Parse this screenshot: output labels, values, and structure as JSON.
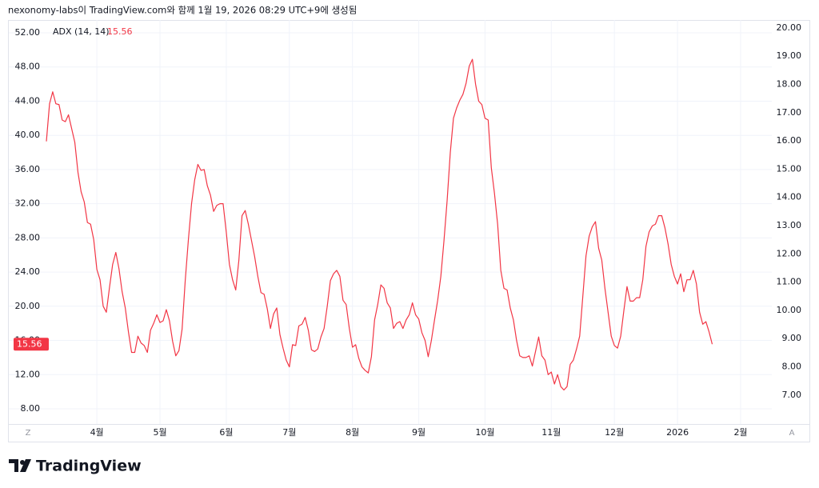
{
  "header": "nexonomy-labs이 TradingView.com와 함께 1월 19, 2026 08:29 UTC+9에 생성됨",
  "brand": "TradingView",
  "controls": {
    "left": "Z",
    "right": "A"
  },
  "chart_data": {
    "type": "line",
    "grid": true,
    "categories": [
      null,
      null,
      null,
      null,
      null,
      null,
      null,
      null,
      null,
      null,
      null,
      null,
      null,
      null,
      null,
      null,
      "4월",
      null,
      null,
      null,
      null,
      null,
      null,
      null,
      null,
      null,
      null,
      null,
      null,
      null,
      null,
      null,
      null,
      null,
      null,
      null,
      "5월",
      null,
      null,
      null,
      null,
      null,
      null,
      null,
      null,
      null,
      null,
      null,
      null,
      null,
      null,
      null,
      null,
      null,
      null,
      null,
      null,
      "6월",
      null,
      null,
      null,
      null,
      null,
      null,
      null,
      null,
      null,
      null,
      null,
      null,
      null,
      null,
      null,
      null,
      null,
      null,
      null,
      "7월",
      null,
      null,
      null,
      null,
      null,
      null,
      null,
      null,
      null,
      null,
      null,
      null,
      null,
      null,
      null,
      null,
      null,
      null,
      null,
      "8월",
      null,
      null,
      null,
      null,
      null,
      null,
      null,
      null,
      null,
      null,
      null,
      null,
      null,
      null,
      null,
      null,
      null,
      null,
      null,
      null,
      "9월",
      null,
      null,
      null,
      null,
      null,
      null,
      null,
      null,
      null,
      null,
      null,
      null,
      null,
      null,
      null,
      null,
      null,
      null,
      null,
      null,
      "10월",
      null,
      null,
      null,
      null,
      null,
      null,
      null,
      null,
      null,
      null,
      null,
      null,
      null,
      null,
      null,
      null,
      null,
      null,
      null,
      null,
      "11월",
      null,
      null,
      null,
      null,
      null,
      null,
      null,
      null,
      null,
      null,
      null,
      null,
      null,
      null,
      null,
      null,
      null,
      null,
      null,
      "12월",
      null,
      null,
      null,
      null,
      null,
      null,
      null,
      null,
      null,
      null,
      null,
      null,
      null,
      null,
      null,
      null,
      null,
      null,
      null,
      "2026",
      null,
      null,
      null,
      null,
      null,
      null,
      null,
      null,
      null,
      null,
      null,
      null,
      null,
      null,
      null,
      null,
      null,
      null,
      null,
      "2월"
    ],
    "series": [
      {
        "name": "ADX (14, 14)",
        "color": "#f23645",
        "values": [
          39.3,
          43.7,
          45.1,
          43.7,
          43.6,
          41.8,
          41.6,
          42.4,
          40.8,
          39.2,
          35.7,
          33.4,
          32.2,
          29.8,
          29.6,
          27.8,
          24.3,
          23.1,
          20.0,
          19.3,
          22.2,
          24.9,
          26.3,
          24.4,
          21.7,
          19.8,
          17.0,
          14.6,
          14.6,
          16.5,
          15.7,
          15.4,
          14.6,
          17.2,
          18.0,
          19.0,
          18.1,
          18.3,
          19.6,
          18.3,
          15.9,
          14.2,
          14.8,
          17.3,
          23.0,
          27.8,
          32.0,
          34.8,
          36.6,
          35.9,
          36.0,
          34.1,
          33.0,
          31.1,
          31.8,
          32.0,
          32.0,
          28.7,
          24.9,
          23.1,
          21.9,
          25.4,
          30.6,
          31.2,
          29.6,
          27.7,
          25.8,
          23.5,
          21.6,
          21.4,
          19.7,
          17.4,
          19.1,
          19.8,
          16.7,
          15.1,
          13.7,
          12.9,
          15.5,
          15.4,
          17.7,
          17.9,
          18.7,
          17.2,
          14.9,
          14.7,
          15.0,
          16.4,
          17.4,
          20.0,
          23.0,
          23.8,
          24.2,
          23.5,
          20.7,
          20.2,
          17.4,
          15.2,
          15.5,
          13.9,
          12.9,
          12.5,
          12.2,
          14.1,
          18.4,
          20.2,
          22.5,
          22.1,
          20.4,
          19.8,
          17.4,
          18.0,
          18.2,
          17.4,
          18.4,
          19.0,
          20.4,
          19.0,
          18.5,
          16.9,
          16.0,
          14.1,
          16.0,
          18.4,
          20.7,
          23.5,
          27.7,
          32.4,
          38.0,
          42.0,
          43.2,
          44.1,
          44.8,
          46.1,
          48.1,
          48.9,
          46.0,
          44.0,
          43.6,
          42.0,
          41.8,
          36.2,
          33.2,
          29.6,
          24.2,
          22.1,
          21.9,
          19.8,
          18.4,
          16.0,
          14.2,
          14.0,
          14.0,
          14.2,
          13.0,
          14.7,
          16.4,
          14.2,
          13.7,
          12.0,
          12.3,
          10.9,
          12.0,
          10.6,
          10.2,
          10.6,
          13.2,
          13.7,
          15.0,
          16.5,
          21.2,
          25.9,
          28.2,
          29.3,
          29.9,
          26.8,
          25.4,
          22.1,
          19.3,
          16.5,
          15.4,
          15.1,
          16.5,
          19.5,
          22.3,
          20.6,
          20.6,
          21.0,
          21.0,
          23.1,
          27.0,
          28.7,
          29.4,
          29.6,
          30.6,
          30.6,
          29.2,
          27.3,
          24.9,
          23.5,
          22.6,
          23.8,
          21.7,
          23.1,
          23.1,
          24.2,
          22.6,
          19.3,
          17.9,
          18.2,
          17.0,
          15.56,
          null,
          null,
          null,
          null,
          null,
          null,
          null,
          null,
          null
        ]
      }
    ],
    "ylim": [
      6.5,
      53.5
    ],
    "yticks": [
      {
        "value": 8,
        "label": "8.00"
      },
      {
        "value": 12,
        "label": "12.00"
      },
      {
        "value": 16,
        "label": "16.00"
      },
      {
        "value": 20,
        "label": "20.00"
      },
      {
        "value": 24,
        "label": "24.00"
      },
      {
        "value": 28,
        "label": "28.00"
      },
      {
        "value": 32,
        "label": "32.00"
      },
      {
        "value": 36,
        "label": "36.00"
      },
      {
        "value": 40,
        "label": "40.00"
      },
      {
        "value": 44,
        "label": "44.00"
      },
      {
        "value": 48,
        "label": "48.00"
      },
      {
        "value": 52,
        "label": "52.00"
      }
    ],
    "y2lim": [
      6.06,
      20.28
    ],
    "y2ticks": [
      {
        "value": 7,
        "label": "7.00"
      },
      {
        "value": 8,
        "label": "8.00"
      },
      {
        "value": 9,
        "label": "9.00"
      },
      {
        "value": 10,
        "label": "10.00"
      },
      {
        "value": 11,
        "label": "11.00"
      },
      {
        "value": 12,
        "label": "12.00"
      },
      {
        "value": 13,
        "label": "13.00"
      },
      {
        "value": 14,
        "label": "14.00"
      },
      {
        "value": 15,
        "label": "15.00"
      },
      {
        "value": 16,
        "label": "16.00"
      },
      {
        "value": 17,
        "label": "17.00"
      },
      {
        "value": 18,
        "label": "18.00"
      },
      {
        "value": 19,
        "label": "19.00"
      },
      {
        "value": 20,
        "label": "20.00"
      }
    ]
  }
}
